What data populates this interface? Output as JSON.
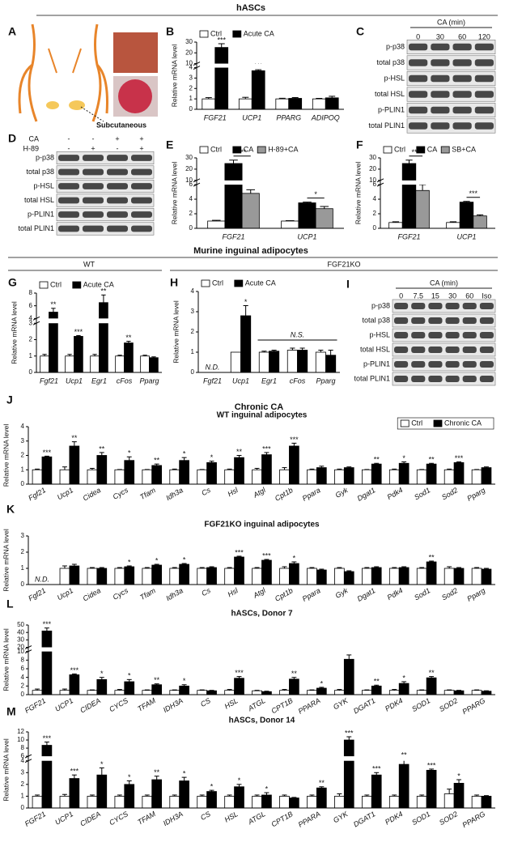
{
  "figure": {
    "sections": [
      "hASCs",
      "Murine inguinal adipocytes",
      "Chronic CA"
    ],
    "groups": [
      "WT",
      "FGF21KO"
    ],
    "panel_a": {
      "panel": "A",
      "label": "Subcutaneous"
    },
    "blots": [
      {
        "panel": "C",
        "header": "CA (min)",
        "lanes": [
          "0",
          "30",
          "60",
          "120"
        ],
        "rows": [
          "p-p38",
          "total p38",
          "p-HSL",
          "total HSL",
          "p-PLIN1",
          "total PLIN1"
        ]
      },
      {
        "panel": "D",
        "conditions": [
          {
            "name": "CA",
            "signs": [
              "-",
              "-",
              "+",
              "+"
            ]
          },
          {
            "name": "H-89",
            "signs": [
              "-",
              "+",
              "-",
              "+"
            ]
          }
        ],
        "rows": [
          "p-p38",
          "total p38",
          "p-HSL",
          "total HSL",
          "p-PLIN1",
          "total PLIN1"
        ]
      },
      {
        "panel": "I",
        "header": "CA (min)",
        "lanes": [
          "0",
          "7.5",
          "15",
          "30",
          "60",
          "Iso"
        ],
        "rows": [
          "p-p38",
          "total p38",
          "p-HSL",
          "total HSL",
          "p-PLIN1",
          "total PLIN1"
        ]
      }
    ]
  },
  "chart_data": [
    {
      "type": "bar",
      "panel": "B",
      "ylabel": "Relative mRNA level",
      "legend": "top-left",
      "categories": [
        "FGF21",
        "UCP1",
        "PPARG",
        "ADIPOQ"
      ],
      "series": [
        {
          "name": "Ctrl",
          "color": "#ffffff",
          "values": [
            1,
            1,
            1,
            1
          ],
          "errors": [
            0.12,
            0.15,
            0.06,
            0.05
          ]
        },
        {
          "name": "Acute CA",
          "color": "#000000",
          "values": [
            25,
            3.7,
            1.05,
            1.1
          ],
          "errors": [
            3.5,
            0.1,
            0.08,
            0.15
          ],
          "significance": [
            "***",
            "***",
            null,
            null
          ]
        }
      ],
      "ylim": [
        0,
        30
      ],
      "yticks": [
        0,
        1,
        2,
        3,
        4,
        10,
        20,
        30
      ],
      "axis_break": [
        4,
        10
      ]
    },
    {
      "type": "bar",
      "panel": "E",
      "ylabel": "Relative mRNA level",
      "legend": "top-left",
      "categories": [
        "FGF21",
        "UCP1"
      ],
      "series": [
        {
          "name": "Ctrl",
          "color": "#ffffff",
          "values": [
            1,
            1
          ],
          "errors": [
            0.1,
            0.05
          ]
        },
        {
          "name": "CA",
          "color": "#000000",
          "values": [
            25,
            3.5
          ],
          "errors": [
            3,
            0.1
          ]
        },
        {
          "name": "H-89+CA",
          "color": "#999999",
          "values": [
            4.8,
            2.7
          ],
          "errors": [
            0.5,
            0.3
          ]
        }
      ],
      "comparisons": [
        {
          "series": [
            1,
            2
          ],
          "category": 0,
          "text": "***"
        },
        {
          "series": [
            1,
            2
          ],
          "category": 1,
          "text": "*"
        }
      ],
      "ylim": [
        0,
        30
      ],
      "yticks": [
        0,
        2,
        4,
        6,
        10,
        20,
        30
      ],
      "axis_break": [
        6,
        10
      ]
    },
    {
      "type": "bar",
      "panel": "F",
      "ylabel": "Relative mRNA level",
      "legend": "top-left",
      "categories": [
        "FGF21",
        "UCP1"
      ],
      "series": [
        {
          "name": "Ctrl",
          "color": "#ffffff",
          "values": [
            0.8,
            0.8
          ],
          "errors": [
            0.1,
            0.1
          ]
        },
        {
          "name": "CA",
          "color": "#000000",
          "values": [
            25,
            3.6
          ],
          "errors": [
            3,
            0.1
          ]
        },
        {
          "name": "SB+CA",
          "color": "#999999",
          "values": [
            5.2,
            1.7
          ],
          "errors": [
            0.8,
            0.15
          ]
        }
      ],
      "comparisons": [
        {
          "series": [
            1,
            2
          ],
          "category": 0,
          "text": "***"
        },
        {
          "series": [
            1,
            2
          ],
          "category": 1,
          "text": "***"
        }
      ],
      "ylim": [
        0,
        30
      ],
      "yticks": [
        0,
        2,
        4,
        6,
        10,
        20,
        30
      ],
      "axis_break": [
        6,
        10
      ]
    },
    {
      "type": "bar",
      "panel": "G",
      "ylabel": "Relative mRNA level",
      "legend": "top-left",
      "categories": [
        "Fgf21",
        "Ucp1",
        "Egr1",
        "cFos",
        "Pparg"
      ],
      "series": [
        {
          "name": "Ctrl",
          "color": "#ffffff",
          "values": [
            1,
            1,
            1,
            1,
            1
          ],
          "errors": [
            0.1,
            0.1,
            0.1,
            0.05,
            0.05
          ]
        },
        {
          "name": "Acute CA",
          "color": "#000000",
          "values": [
            5,
            2.2,
            6.5,
            1.8,
            0.9
          ],
          "errors": [
            0.6,
            0.05,
            1.2,
            0.1,
            0.05
          ],
          "significance": [
            "**",
            "***",
            "**",
            "**",
            null
          ]
        }
      ],
      "ylim": [
        0,
        8
      ],
      "yticks": [
        0,
        1,
        2,
        3,
        4,
        6,
        8
      ],
      "axis_break": [
        3,
        4
      ]
    },
    {
      "type": "bar",
      "panel": "H",
      "ylabel": "Relative mRNA level",
      "legend": "top-left",
      "categories": [
        "Fgf21",
        "Ucp1",
        "Egr1",
        "cFos",
        "Pparg"
      ],
      "series": [
        {
          "name": "Ctrl",
          "color": "#ffffff",
          "values": [
            null,
            1,
            1,
            1.1,
            1.0
          ],
          "errors": [
            null,
            null,
            0.05,
            0.1,
            0.1
          ]
        },
        {
          "name": "Acute CA",
          "color": "#000000",
          "values": [
            null,
            2.8,
            1.05,
            1.1,
            0.85
          ],
          "errors": [
            null,
            0.5,
            0.05,
            0.1,
            0.25
          ],
          "significance": [
            null,
            "*",
            null,
            null,
            null
          ]
        }
      ],
      "annotations": [
        {
          "text": "N.D.",
          "from": 0,
          "to": 0
        },
        {
          "text": "N.S.",
          "from": 2,
          "to": 4
        }
      ],
      "ylim": [
        0,
        4
      ],
      "yticks": [
        0,
        1,
        2,
        3,
        4
      ]
    },
    {
      "type": "bar",
      "panel": "J",
      "title": "WT inguinal adipocytes",
      "ylabel": "Relative mRNA level",
      "legend": "top-right",
      "categories": [
        "Fgf21",
        "Ucp1",
        "Cidea",
        "Cycs",
        "Tfam",
        "Idh3a",
        "Cs",
        "Hsl",
        "Atgl",
        "Cpt1b",
        "Ppara",
        "Gyk",
        "Dgat1",
        "Pdk4",
        "Sod1",
        "Sod2",
        "Pparg"
      ],
      "series": [
        {
          "name": "Ctrl",
          "color": "#ffffff",
          "values": [
            1,
            1,
            1,
            1,
            1,
            1,
            1,
            1,
            1,
            1,
            1,
            1,
            1,
            1,
            1,
            1,
            1
          ],
          "errors": [
            0.05,
            0.2,
            0.1,
            0.02,
            0.02,
            0.05,
            0.02,
            0.05,
            0.1,
            0.15,
            0.05,
            0.05,
            0.02,
            0.05,
            0.02,
            0.05,
            0.02
          ]
        },
        {
          "name": "Chronic CA",
          "color": "#000000",
          "values": [
            1.9,
            2.65,
            2.0,
            1.65,
            1.3,
            1.65,
            1.5,
            1.85,
            2.05,
            2.65,
            1.15,
            1.15,
            1.4,
            1.45,
            1.4,
            1.5,
            1.15
          ],
          "errors": [
            0.05,
            0.3,
            0.2,
            0.25,
            0.1,
            0.2,
            0.1,
            0.15,
            0.15,
            0.2,
            0.1,
            0.05,
            0.05,
            0.1,
            0.05,
            0.05,
            0.05
          ],
          "significance": [
            "***",
            "**",
            "**",
            "*",
            "**",
            "*",
            "*",
            "**",
            "***",
            "***",
            null,
            null,
            "**",
            "*",
            "**",
            "***",
            null
          ]
        }
      ],
      "ylim": [
        0,
        4
      ],
      "yticks": [
        0,
        1,
        2,
        3,
        4
      ]
    },
    {
      "type": "bar",
      "panel": "K",
      "title": "FGF21KO inguinal adipocytes",
      "ylabel": "Relative mRNA level",
      "categories": [
        "Fgf21",
        "Ucp1",
        "Cidea",
        "Cycs",
        "Tfam",
        "Idh3a",
        "Cs",
        "Hsl",
        "Atgl",
        "Cpt1b",
        "Ppara",
        "Gyk",
        "Dgat1",
        "Pdk4",
        "Sod1",
        "Sod2",
        "Pparg"
      ],
      "series": [
        {
          "color": "#ffffff",
          "values": [
            null,
            1,
            1,
            1,
            1,
            1,
            1,
            1,
            1,
            1,
            1,
            1,
            1,
            1,
            1,
            1,
            1
          ],
          "errors": [
            null,
            0.15,
            0.05,
            0.05,
            0.05,
            0.05,
            0.05,
            0.05,
            0.05,
            0.1,
            0.05,
            0.05,
            0.05,
            0.05,
            0.05,
            0.1,
            0.05
          ]
        },
        {
          "color": "#000000",
          "values": [
            null,
            1.15,
            1.0,
            1.1,
            1.2,
            1.25,
            1.05,
            1.7,
            1.5,
            1.3,
            0.9,
            0.8,
            1.05,
            1.05,
            1.4,
            1.0,
            0.95
          ],
          "errors": [
            null,
            0.1,
            0.05,
            0.05,
            0.05,
            0.05,
            0.05,
            0.05,
            0.05,
            0.1,
            0.05,
            0.05,
            0.05,
            0.05,
            0.05,
            0.05,
            0.05
          ],
          "significance": [
            null,
            null,
            null,
            "*",
            "*",
            "*",
            null,
            "***",
            "***",
            "*",
            null,
            null,
            null,
            null,
            "**",
            null,
            null
          ]
        }
      ],
      "annotations": [
        {
          "text": "N.D.",
          "from": 0,
          "to": 0
        }
      ],
      "ylim": [
        0,
        3
      ],
      "yticks": [
        0,
        1,
        2,
        3
      ]
    },
    {
      "type": "bar",
      "panel": "L",
      "title": "hASCs, Donor 7",
      "ylabel": "Relative mRNA level",
      "categories": [
        "FGF21",
        "UCP1",
        "CIDEA",
        "CYCS",
        "TFAM",
        "IDH3A",
        "CS",
        "HSL",
        "ATGL",
        "CPT1B",
        "PPARA",
        "GYK",
        "DGAT1",
        "PDK4",
        "SOD1",
        "SOD2",
        "PPARG"
      ],
      "series": [
        {
          "color": "#ffffff",
          "values": [
            1,
            1,
            1,
            1,
            1,
            1,
            1,
            1,
            0.9,
            1,
            1,
            1,
            1,
            1,
            1,
            1,
            1
          ],
          "errors": [
            0.3,
            0.3,
            0.1,
            0.2,
            0.1,
            0.1,
            0.1,
            0.2,
            0.1,
            0.2,
            0.1,
            0.2,
            0.1,
            0.2,
            0.1,
            0.1,
            0.1
          ]
        },
        {
          "color": "#000000",
          "values": [
            42,
            4.6,
            3.5,
            3.0,
            2.3,
            2.0,
            0.9,
            3.8,
            0.7,
            3.6,
            1.5,
            8.2,
            2.0,
            2.6,
            3.9,
            0.9,
            0.8
          ],
          "errors": [
            4,
            0.2,
            0.5,
            0.5,
            0.2,
            0.3,
            0.1,
            0.4,
            0.1,
            0.4,
            0.2,
            1.0,
            0.2,
            0.4,
            0.3,
            0.1,
            0.1
          ],
          "significance": [
            "***",
            "***",
            "*",
            "*",
            "**",
            "*",
            null,
            "***",
            null,
            "**",
            "*",
            "*",
            "**",
            "*",
            "**",
            null,
            null
          ]
        }
      ],
      "ylim": [
        0,
        50
      ],
      "yticks": [
        0,
        2,
        4,
        6,
        8,
        10,
        20,
        30,
        40,
        50
      ],
      "axis_break": [
        10,
        20
      ]
    },
    {
      "type": "bar",
      "panel": "M",
      "title": "hASCs, Donor 14",
      "ylabel": "Relative mRNA level",
      "categories": [
        "FGF21",
        "UCP1",
        "CIDEA",
        "CYCS",
        "TFAM",
        "IDH3A",
        "CS",
        "HSL",
        "ATGL",
        "CPT1B",
        "PPARA",
        "GYK",
        "DGAT1",
        "PDK4",
        "SOD1",
        "SOD2",
        "PPARG"
      ],
      "series": [
        {
          "color": "#ffffff",
          "values": [
            1,
            1,
            1,
            1,
            1,
            1,
            1,
            1,
            1,
            1,
            1,
            1,
            1,
            1,
            1,
            1.2,
            1
          ],
          "errors": [
            0.1,
            0.15,
            0.1,
            0.1,
            0.1,
            0.1,
            0.1,
            0.1,
            0.1,
            0.1,
            0.1,
            0.2,
            0.1,
            0.1,
            0.1,
            0.4,
            0.1
          ]
        },
        {
          "color": "#000000",
          "values": [
            8.7,
            2.5,
            2.8,
            2.0,
            2.4,
            2.3,
            1.4,
            1.8,
            1.1,
            0.85,
            1.7,
            10,
            2.8,
            3.7,
            3.2,
            2.1,
            1.0
          ],
          "errors": [
            0.8,
            0.3,
            0.6,
            0.3,
            0.3,
            0.3,
            0.1,
            0.2,
            0.2,
            0.05,
            0.1,
            0.8,
            0.2,
            0.5,
            0.1,
            0.3,
            0.05
          ],
          "significance": [
            "***",
            "***",
            "*",
            "*",
            "**",
            "*",
            "*",
            "*",
            "*",
            null,
            "**",
            "***",
            "***",
            "**",
            "***",
            "*",
            null
          ]
        }
      ],
      "ylim": [
        0,
        12
      ],
      "yticks": [
        0,
        1,
        2,
        3,
        4,
        6,
        8,
        10,
        12
      ],
      "axis_break": [
        4,
        6
      ]
    }
  ]
}
